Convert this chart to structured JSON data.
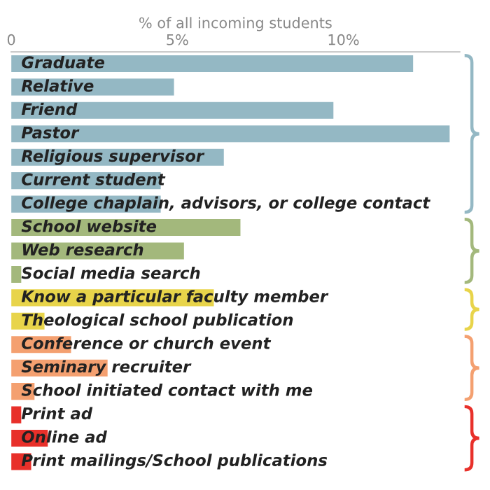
{
  "chart_data": {
    "type": "bar",
    "orientation": "horizontal",
    "xlabel": "% of all incoming students",
    "categories": [
      "Graduate",
      "Relative",
      "Friend",
      "Pastor",
      "Religious supervisor",
      "Current student",
      "College chaplain, advisors, or college contact",
      "School website",
      "Web research",
      "Social media search",
      "Know a particular faculty member",
      "Theological school publication",
      "Conference or church event",
      "Seminary recruiter",
      "School initiated contact with me",
      "Print ad",
      "Online ad",
      "Print mailings/School publications"
    ],
    "values": [
      12.1,
      4.9,
      9.7,
      13.2,
      6.4,
      4.5,
      4.5,
      6.9,
      5.2,
      0.3,
      6.1,
      1.0,
      1.8,
      2.9,
      0.7,
      0.3,
      1.1,
      0.6
    ],
    "colors": [
      "#94b8c4",
      "#94b8c4",
      "#94b8c4",
      "#94b8c4",
      "#94b8c4",
      "#94b8c4",
      "#94b8c4",
      "#a3b87c",
      "#a3b87c",
      "#a3b87c",
      "#e8d44a",
      "#e8d44a",
      "#f4a070",
      "#f4a070",
      "#f4a070",
      "#e8302a",
      "#e8302a",
      "#e8302a"
    ],
    "xlim": [
      0,
      13.5
    ],
    "xticks": [
      0,
      {
        "value": 5,
        "label": "5%"
      },
      {
        "value": 10,
        "label": "10%"
      }
    ],
    "grid": false,
    "legend": false
  }
}
